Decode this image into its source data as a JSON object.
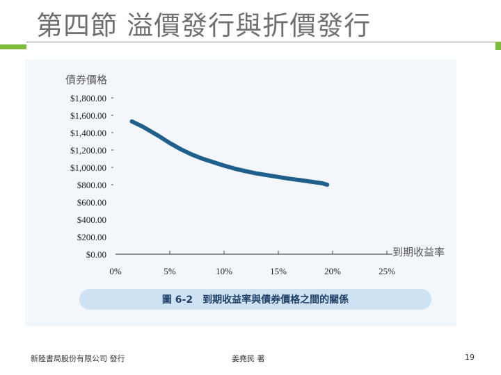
{
  "slide": {
    "title": "第四節 溢價發行與折價發行",
    "publisher": "新陸書局股份有限公司 發行",
    "author": "姜堯民 著",
    "page_number": "19",
    "accent_color": "#7dbb3a"
  },
  "chart_data": {
    "type": "line",
    "ylabel": "債券價格",
    "xlabel": "到期收益率",
    "caption": "圖 6-2　到期收益率與債券價格之間的關係",
    "x_ticks": [
      "0%",
      "5%",
      "10%",
      "15%",
      "20%",
      "25%"
    ],
    "y_ticks": [
      "$0.00",
      "$200.00",
      "$400.00",
      "$600.00",
      "$800.00",
      "$1,000.00",
      "$1,200.00",
      "$1,400.00",
      "$1,600.00",
      "$1,800.00"
    ],
    "xlim": [
      0,
      25
    ],
    "ylim": [
      0,
      1800
    ],
    "grid": false,
    "series": [
      {
        "color": "#1f5f8b",
        "x": [
          1.5,
          2.5,
          4,
          5,
          6,
          7,
          8,
          9,
          10,
          11,
          12,
          13,
          14,
          15,
          16,
          17,
          18,
          19,
          19.5
        ],
        "y": [
          1530,
          1470,
          1360,
          1280,
          1210,
          1150,
          1100,
          1060,
          1020,
          985,
          955,
          930,
          910,
          890,
          870,
          853,
          835,
          818,
          800
        ]
      }
    ]
  }
}
